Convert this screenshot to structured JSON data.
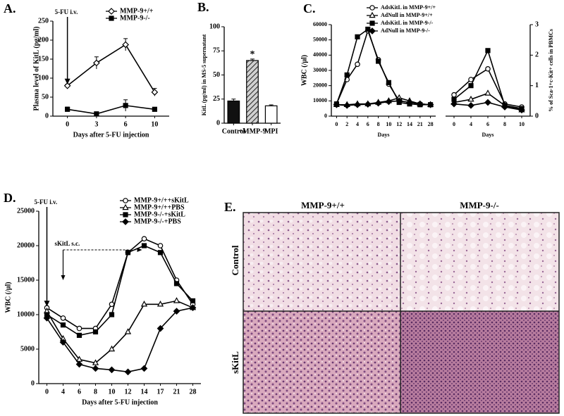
{
  "chart_data": [
    {
      "type": "line",
      "label": "A.",
      "ylabel": "Plasma level of KitL (pg/ml)",
      "xlabel": "Days after 5-FU injection",
      "categories": [
        "0",
        "3",
        "6",
        "10"
      ],
      "ylim": [
        0,
        250
      ],
      "yticks": [
        0,
        50,
        100,
        150,
        200,
        250
      ],
      "annotations": [
        "5-FU i.v."
      ],
      "series": [
        {
          "name": "MMP-9+/+",
          "color": "#000000",
          "marker": "diamond-open",
          "values": [
            80,
            140,
            188,
            63
          ],
          "errors": [
            4,
            16,
            16,
            10
          ]
        },
        {
          "name": "MMP-9-/-",
          "color": "#000000",
          "marker": "square",
          "values": [
            18,
            6,
            28,
            18
          ],
          "errors": [
            6,
            3,
            15,
            5
          ]
        }
      ]
    },
    {
      "type": "bar",
      "label": "B.",
      "ylabel": "KitL (pg/ml) in MS-5 supernatant",
      "categories": [
        "Control",
        "+MMP-9",
        "MPI"
      ],
      "values": [
        23,
        65,
        18
      ],
      "errors": [
        2,
        1.5,
        1
      ],
      "fills": [
        "#111111",
        "#9a9a9a",
        "#ffffff"
      ],
      "hatched": [
        false,
        true,
        false
      ],
      "ylim": [
        0,
        100
      ],
      "yticks": [
        0,
        25,
        50,
        75,
        100
      ],
      "annotations": [
        "*"
      ]
    },
    {
      "type": "line",
      "label": "C.",
      "ylabel": "WBC (/μl)",
      "xlabel": "Days",
      "categories": [
        "0",
        "2",
        "4",
        "6",
        "8",
        "10",
        "12",
        "14",
        "21",
        "28"
      ],
      "ylim": [
        0,
        60000
      ],
      "yticks": [
        0,
        10000,
        20000,
        30000,
        40000,
        50000,
        60000
      ],
      "series": [
        {
          "name": "AdsKitL in MMP-9+/+",
          "color": "#000000",
          "marker": "circle-open",
          "values": [
            8000,
            24000,
            34000,
            56000,
            37000,
            21000,
            10000,
            9000,
            8000,
            7500
          ]
        },
        {
          "name": "AdNull in MMP-9+/+",
          "color": "#000000",
          "marker": "triangle-open",
          "values": [
            7500,
            7500,
            8000,
            8000,
            9000,
            10000,
            12000,
            10000,
            8000,
            7500
          ]
        },
        {
          "name": "AdsKitL in MMP-9-/-",
          "color": "#000000",
          "marker": "square",
          "values": [
            8000,
            27000,
            52000,
            57000,
            36000,
            22000,
            9000,
            8000,
            7500,
            7500
          ]
        },
        {
          "name": "AdNull in MMP-9-/-",
          "color": "#000000",
          "marker": "diamond",
          "values": [
            7500,
            7000,
            7500,
            7800,
            8500,
            9500,
            10000,
            9000,
            8000,
            7500
          ]
        }
      ]
    },
    {
      "type": "line",
      "xlabel": "Days",
      "y2label": "% of Sca-1+c-Kit+ cells in PBMCs",
      "categories": [
        "0",
        "4",
        "6",
        "8",
        "10"
      ],
      "y2lim": [
        0,
        3
      ],
      "y2ticks": [
        0,
        1,
        2,
        3
      ],
      "series": [
        {
          "color": "#000000",
          "marker": "circle-open",
          "axis": "y2",
          "values": [
            0.7,
            1.2,
            1.55,
            0.4,
            0.3
          ]
        },
        {
          "color": "#000000",
          "marker": "triangle-open",
          "axis": "y2",
          "values": [
            0.45,
            0.55,
            0.75,
            0.35,
            0.2
          ]
        },
        {
          "color": "#000000",
          "marker": "square",
          "axis": "y2",
          "values": [
            0.55,
            1.0,
            2.15,
            0.35,
            0.25
          ]
        },
        {
          "color": "#000000",
          "marker": "diamond",
          "axis": "y2",
          "values": [
            0.4,
            0.35,
            0.45,
            0.3,
            0.2
          ]
        }
      ]
    },
    {
      "type": "line",
      "label": "D.",
      "ylabel": "WBC (/μl)",
      "xlabel": "Days after 5-FU injection",
      "categories": [
        "0",
        "4",
        "6",
        "8",
        "10",
        "12",
        "14",
        "17",
        "21",
        "28"
      ],
      "ylim": [
        0,
        25000
      ],
      "yticks": [
        0,
        5000,
        10000,
        15000,
        20000,
        25000
      ],
      "annotations": [
        "5-FU i.v.",
        "sKitL s.c."
      ],
      "series": [
        {
          "name": "MMP-9+/++sKitL",
          "color": "#000000",
          "marker": "circle-open",
          "values": [
            11000,
            9500,
            8000,
            8000,
            11500,
            19000,
            21000,
            20000,
            15000,
            11500
          ]
        },
        {
          "name": "MMP-9+/++PBS",
          "color": "#000000",
          "marker": "triangle-open",
          "values": [
            10500,
            6500,
            3500,
            3000,
            5000,
            7500,
            11500,
            11500,
            12000,
            11000
          ]
        },
        {
          "name": "MMP-9-/-+sKitL",
          "color": "#000000",
          "marker": "square",
          "values": [
            10000,
            8500,
            7000,
            7500,
            10000,
            19000,
            20000,
            19000,
            14500,
            12000
          ]
        },
        {
          "name": "MMP-9-/-+PBS",
          "color": "#000000",
          "marker": "diamond",
          "values": [
            9500,
            6000,
            2800,
            2200,
            2000,
            1700,
            2200,
            8000,
            10500,
            11000
          ]
        }
      ]
    }
  ],
  "panel_e": {
    "label": "E.",
    "columns": [
      "MMP-9+/+",
      "MMP-9-/-"
    ],
    "rows": [
      "Control",
      "sKitL"
    ]
  }
}
